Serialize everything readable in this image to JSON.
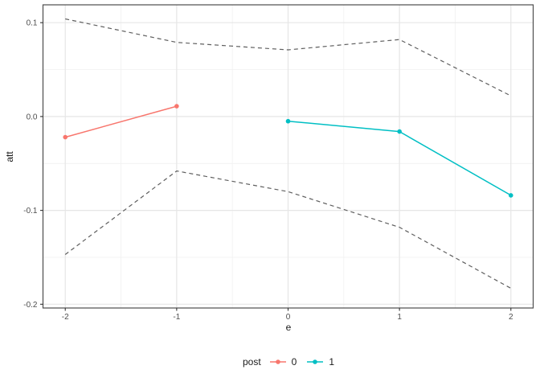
{
  "chart_data": {
    "type": "line",
    "title": "",
    "xlabel": "e",
    "ylabel": "att",
    "xlim": [
      -2.2,
      2.2
    ],
    "ylim": [
      -0.204,
      0.119
    ],
    "x_ticks": [
      -2,
      -1,
      0,
      1,
      2
    ],
    "x_tick_labels": [
      "-2",
      "-1",
      "0",
      "1",
      "2"
    ],
    "y_ticks": [
      0.1,
      0.0,
      -0.1,
      -0.2
    ],
    "y_tick_labels": [
      "0.1",
      "0.0",
      "-0.1",
      "-0.2"
    ],
    "x_minor_ticks": [
      -1.5,
      -0.5,
      0.5,
      1.5
    ],
    "y_minor_ticks": [
      0.05,
      -0.05,
      -0.15
    ],
    "grid": true,
    "series": [
      {
        "name": "ci-upper",
        "style": "dashed",
        "color": "#5f5f5f",
        "points": false,
        "x": [
          -2,
          -1,
          0,
          1,
          2
        ],
        "y": [
          0.104,
          0.079,
          0.071,
          0.082,
          0.022
        ]
      },
      {
        "name": "post-0",
        "style": "solid",
        "color": "#F8766D",
        "points": true,
        "x": [
          -2,
          -1
        ],
        "y": [
          -0.022,
          0.011
        ]
      },
      {
        "name": "post-1",
        "style": "solid",
        "color": "#00BFC4",
        "points": true,
        "x": [
          0,
          1,
          2
        ],
        "y": [
          -0.005,
          -0.016,
          -0.084
        ]
      },
      {
        "name": "ci-lower",
        "style": "dashed",
        "color": "#5f5f5f",
        "points": false,
        "x": [
          -2,
          -1,
          0,
          1,
          2
        ],
        "y": [
          -0.147,
          -0.058,
          -0.08,
          -0.118,
          -0.183
        ]
      }
    ],
    "legend": {
      "title": "post",
      "position": "bottom",
      "entries": [
        {
          "label": "0",
          "color": "#F8766D"
        },
        {
          "label": "1",
          "color": "#00BFC4"
        }
      ]
    },
    "colors": {
      "panel_border": "#4d4d4d",
      "grid_major": "#e6e6e6",
      "grid_minor": "#f2f2f2",
      "tick_mark": "#333333",
      "tick_label": "#4d4d4d"
    }
  }
}
